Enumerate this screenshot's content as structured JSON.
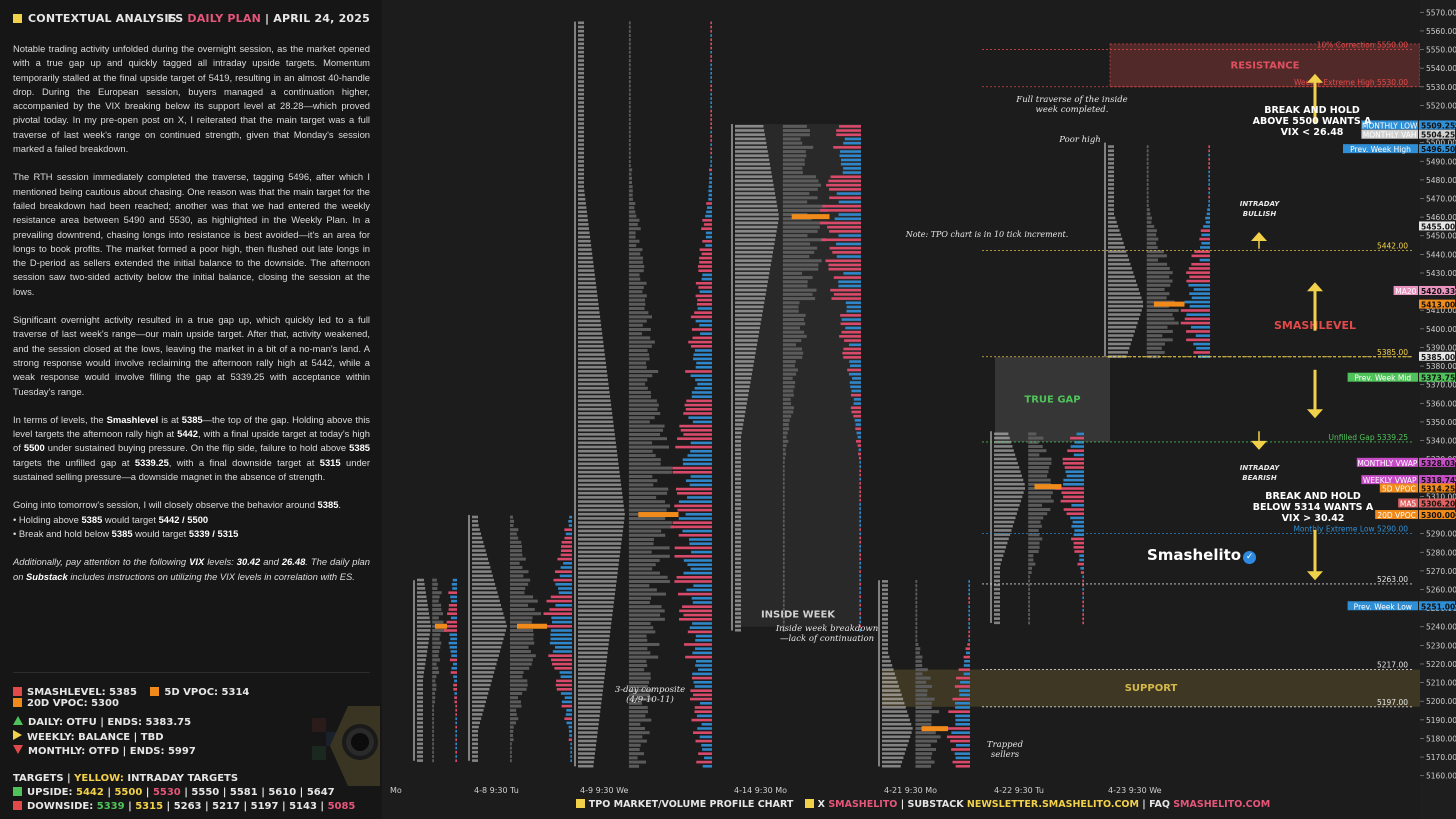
{
  "header": {
    "left_title": "CONTEXTUAL ANALYSIS",
    "ticker": "ES",
    "plan": "DAILY PLAN",
    "sep": "|",
    "date": "APRIL 24, 2025"
  },
  "paragraphs": [
    "Notable trading activity unfolded during the overnight session, as the market opened with a true gap up and quickly tagged all intraday upside targets. Momentum temporarily stalled at the final upside target of 5419, resulting in an almost 40-handle drop. During the European session, buyers managed a continuation higher, accompanied by the VIX breaking below its support level at 28.28—which proved pivotal today. In my pre-open post on X, I reiterated that the main target was a full traverse of last week's range on continued strength, given that Monday's session marked a failed breakdown.",
    "The RTH session immediately completed the traverse, tagging 5496, after which I mentioned being cautious about chasing. One reason was that the main target for the failed breakdown had been reached; another was that we had entered the weekly resistance area between 5490 and 5530, as highlighted in the Weekly Plan. In a prevailing downtrend, chasing longs into resistance is best avoided—it's an area for longs to book profits. The market formed a poor high, then flushed out late longs in the D-period as sellers extended the initial balance to the downside. The afternoon session saw two-sided activity below the initial balance, closing the session at the lows.",
    "Significant overnight activity resulted in a true gap up, which quickly led to a full traverse of last week's range—our main upside target. After that, activity weakened, and the session closed at the lows, leaving the market in a bit of a no-man's land. A strong response would involve reclaiming the afternoon rally high at 5442, while a weak response would involve filling the gap at 5339.25 with acceptance within Tuesday's range."
  ],
  "levels_paragraph": {
    "p1": "In terms of levels, the ",
    "smashlevel_word": "Smashlevel",
    "p2": " is at ",
    "v1": "5385",
    "p3": "—the top of the gap. Holding above this level targets the afternoon rally high at ",
    "v2": "5442",
    "p4": ", with a final upside target at today's high of ",
    "v3": "5500",
    "p5": " under sustained buying pressure. On the flip side, failure to hold above ",
    "v4": "5385",
    "p6": " targets the unfilled gap at ",
    "v5": "5339.25",
    "p7": ", with a final downside target at ",
    "v6": "5315",
    "p8": " under sustained selling pressure—a downside magnet in the absence of strength."
  },
  "tomorrow": {
    "intro_a": "Going into tomorrow's session, I will closely observe the behavior around ",
    "intro_v": "5385",
    "intro_b": ".",
    "bullet1_a": "• Holding above ",
    "bullet1_v": "5385",
    "bullet1_b": " would target ",
    "bullet1_t": "5442 / 5500",
    "bullet2_a": "• Break and hold below ",
    "bullet2_v": "5385",
    "bullet2_b": " would target ",
    "bullet2_t": "5339 / 5315"
  },
  "vix_note": {
    "a": "Additionally, pay attention to the following ",
    "vix": "VIX",
    "b": " levels: ",
    "v1": "30.42",
    "c": " and ",
    "v2": "26.48",
    "d": ". The daily plan on ",
    "substack": "Substack",
    "e": " includes instructions on utilizing the VIX levels in correlation with ES."
  },
  "legend_levels": [
    {
      "label": "SMASHLEVEL: 5385",
      "color": "#e04a4a"
    },
    {
      "label": "5D VPOC: 5314",
      "color": "#f08a1a"
    },
    {
      "label": "20D VPOC: 5300",
      "color": "#f08a1a"
    }
  ],
  "status": [
    {
      "label": "DAILY: OTFU",
      "sep": "|",
      "extra": "ENDS: 5383.75",
      "dir": "up"
    },
    {
      "label": "WEEKLY: BALANCE",
      "sep": "|",
      "extra": "TBD",
      "dir": "right"
    },
    {
      "label": "MONTHLY: OTFD",
      "sep": "|",
      "extra": "ENDS: 5997",
      "dir": "down"
    }
  ],
  "targets": {
    "title": "TARGETS",
    "sep": "|",
    "yellow_label": "YELLOW:",
    "yellow_desc": "INTRADAY TARGETS",
    "upside_label": "UPSIDE:",
    "upside": [
      {
        "v": "5442",
        "c": "#f2d14a"
      },
      {
        "v": "5500",
        "c": "#f2d14a"
      },
      {
        "v": "5530",
        "c": "#e4567a"
      },
      {
        "v": "5550",
        "c": "#e6e6e6"
      },
      {
        "v": "5581",
        "c": "#e6e6e6"
      },
      {
        "v": "5610",
        "c": "#e6e6e6"
      },
      {
        "v": "5647",
        "c": "#e6e6e6"
      }
    ],
    "downside_label": "DOWNSIDE:",
    "downside": [
      {
        "v": "5339",
        "c": "#4fc35a"
      },
      {
        "v": "5315",
        "c": "#f2d14a"
      },
      {
        "v": "5263",
        "c": "#e6e6e6"
      },
      {
        "v": "5217",
        "c": "#e6e6e6"
      },
      {
        "v": "5197",
        "c": "#e6e6e6"
      },
      {
        "v": "5143",
        "c": "#e6e6e6"
      },
      {
        "v": "5085",
        "c": "#e4567a"
      }
    ]
  },
  "chart_data": {
    "type": "tpo_market_profile",
    "ylim": [
      5155,
      5575
    ],
    "y_ticks": [
      5160,
      5170,
      5180,
      5190,
      5200,
      5210,
      5220,
      5230,
      5240,
      5250,
      5260,
      5270,
      5280,
      5290,
      5300,
      5310,
      5320,
      5330,
      5340,
      5350,
      5360,
      5370,
      5380,
      5390,
      5400,
      5410,
      5420,
      5430,
      5440,
      5450,
      5460,
      5470,
      5480,
      5490,
      5500,
      5510,
      5520,
      5530,
      5540,
      5550,
      5560,
      5570
    ],
    "x_labels": [
      "Mo",
      "4-8  9:30 Tu",
      "4-9  9:30 We",
      "4-14  9:30 Mo",
      "4-21  9:30 Mo",
      "4-22  9:30 Tu",
      "4-23  9:30 We"
    ],
    "sessions": [
      {
        "low": 5168,
        "high": 5265,
        "poc": 5240
      },
      {
        "low": 5168,
        "high": 5300,
        "poc": 5240
      },
      {
        "low": 5165,
        "high": 5565,
        "poc": 5300
      },
      {
        "low": 5238,
        "high": 5510,
        "poc": 5460
      },
      {
        "low": 5165,
        "high": 5265,
        "poc": 5185
      },
      {
        "low": 5242,
        "high": 5345,
        "poc": 5315
      },
      {
        "low": 5385,
        "high": 5500,
        "poc": 5413
      }
    ],
    "price_lines": [
      {
        "label": "10% Correction",
        "value": "5550.00",
        "price": 5550,
        "color": "#e04a4a"
      },
      {
        "label": "Weekly Extreme High",
        "value": "5530.00",
        "price": 5530,
        "color": "#e04a4a"
      },
      {
        "label": "",
        "value": "5442.00",
        "price": 5442,
        "color": "#f2d14a"
      },
      {
        "label": "",
        "value": "5385.00",
        "price": 5385,
        "color": "#f2d14a"
      },
      {
        "label": "Unfilled Gap",
        "value": "5339.25",
        "price": 5339.25,
        "color": "#4fc35a"
      },
      {
        "label": "Monthly Extreme Low",
        "value": "5290.00",
        "price": 5290,
        "color": "#2f8fd6"
      },
      {
        "label": "",
        "value": "5263.00",
        "price": 5263,
        "color": "#e6e6e6"
      },
      {
        "label": "",
        "value": "5217.00",
        "price": 5217,
        "color": "#e6e6e6"
      },
      {
        "label": "",
        "value": "5197.00",
        "price": 5197,
        "color": "#e6e6e6"
      }
    ],
    "axis_tags": [
      {
        "label": "MONTHLY LOW",
        "value": "5509.25",
        "price": 5509.25,
        "bg": "#2f8fd6"
      },
      {
        "label": "MONTHLY VAH",
        "value": "5504.25",
        "price": 5504.25,
        "bg": "#cfcfcf"
      },
      {
        "label": "Prev. Week High",
        "value": "5496.50",
        "price": 5496.5,
        "bg": "#2f8fd6"
      },
      {
        "label": "",
        "value": "5455.00",
        "price": 5455,
        "bg": "#e6e6e6"
      },
      {
        "label": "MA20",
        "value": "5420.33",
        "price": 5420.33,
        "bg": "#e995c0"
      },
      {
        "label": "",
        "value": "5413.00",
        "price": 5413,
        "bg": "#f08a1a"
      },
      {
        "label": "",
        "value": "5385.00",
        "price": 5385,
        "bg": "#e6e6e6"
      },
      {
        "label": "Prev. Week Mid",
        "value": "5373.75",
        "price": 5373.75,
        "bg": "#4fc35a"
      },
      {
        "label": "MONTHLY VWAP",
        "value": "5328.03",
        "price": 5328.03,
        "bg": "#c84cc8"
      },
      {
        "label": "WEEKLY VWAP",
        "value": "5318.74",
        "price": 5318.74,
        "bg": "#c84cc8"
      },
      {
        "label": "5D VPOC",
        "value": "5314.25",
        "price": 5314.25,
        "bg": "#f08a1a"
      },
      {
        "label": "MA5",
        "value": "5306.20",
        "price": 5306.2,
        "bg": "#e06060"
      },
      {
        "label": "20D VPOC",
        "value": "5300.00",
        "price": 5300,
        "bg": "#f08a1a"
      },
      {
        "label": "Prev. Week Low",
        "value": "5251.00",
        "price": 5251,
        "bg": "#2f8fd6"
      }
    ],
    "zones": [
      {
        "label": "RESISTANCE",
        "from": 5530,
        "to": 5553,
        "color": "#e04a4a"
      },
      {
        "label": "TRUE GAP",
        "from": 5339.25,
        "to": 5385,
        "color": "#3a3a3a"
      },
      {
        "label": "SUPPORT",
        "from": 5197,
        "to": 5217,
        "color": "#d6b84a"
      },
      {
        "label": "INSIDE WEEK",
        "from": 5240,
        "to": 5510,
        "color": "#2b2b2b"
      }
    ],
    "smashlevel": {
      "label": "SMASHLEVEL",
      "price": 5385
    },
    "annotations": [
      "Full traverse of the inside week completed.",
      "Poor high",
      "BREAK AND HOLD ABOVE 5500 WANTS A VIX < 26.48",
      "INTRADAY BULLISH",
      "INTRADAY BEARISH",
      "BREAK AND HOLD BELOW 5314 WANTS A VIX > 30.42",
      "Note: TPO chart is in 10 tick increment.",
      "Inside week breakdown —lack of continuation",
      "3-day composite (4/9-10-11)",
      "Trapped sellers"
    ]
  },
  "brand": "Smashelito",
  "footer": {
    "chart_name": "TPO MARKET/VOLUME PROFILE CHART",
    "x_label": "X",
    "x_handle": "SMASHELITO",
    "substack_label": "SUBSTACK",
    "substack_url": "NEWSLETTER.SMASHELITO.COM",
    "faq_label": "FAQ",
    "faq_url": "SMASHELITO.COM",
    "sep": "|"
  }
}
